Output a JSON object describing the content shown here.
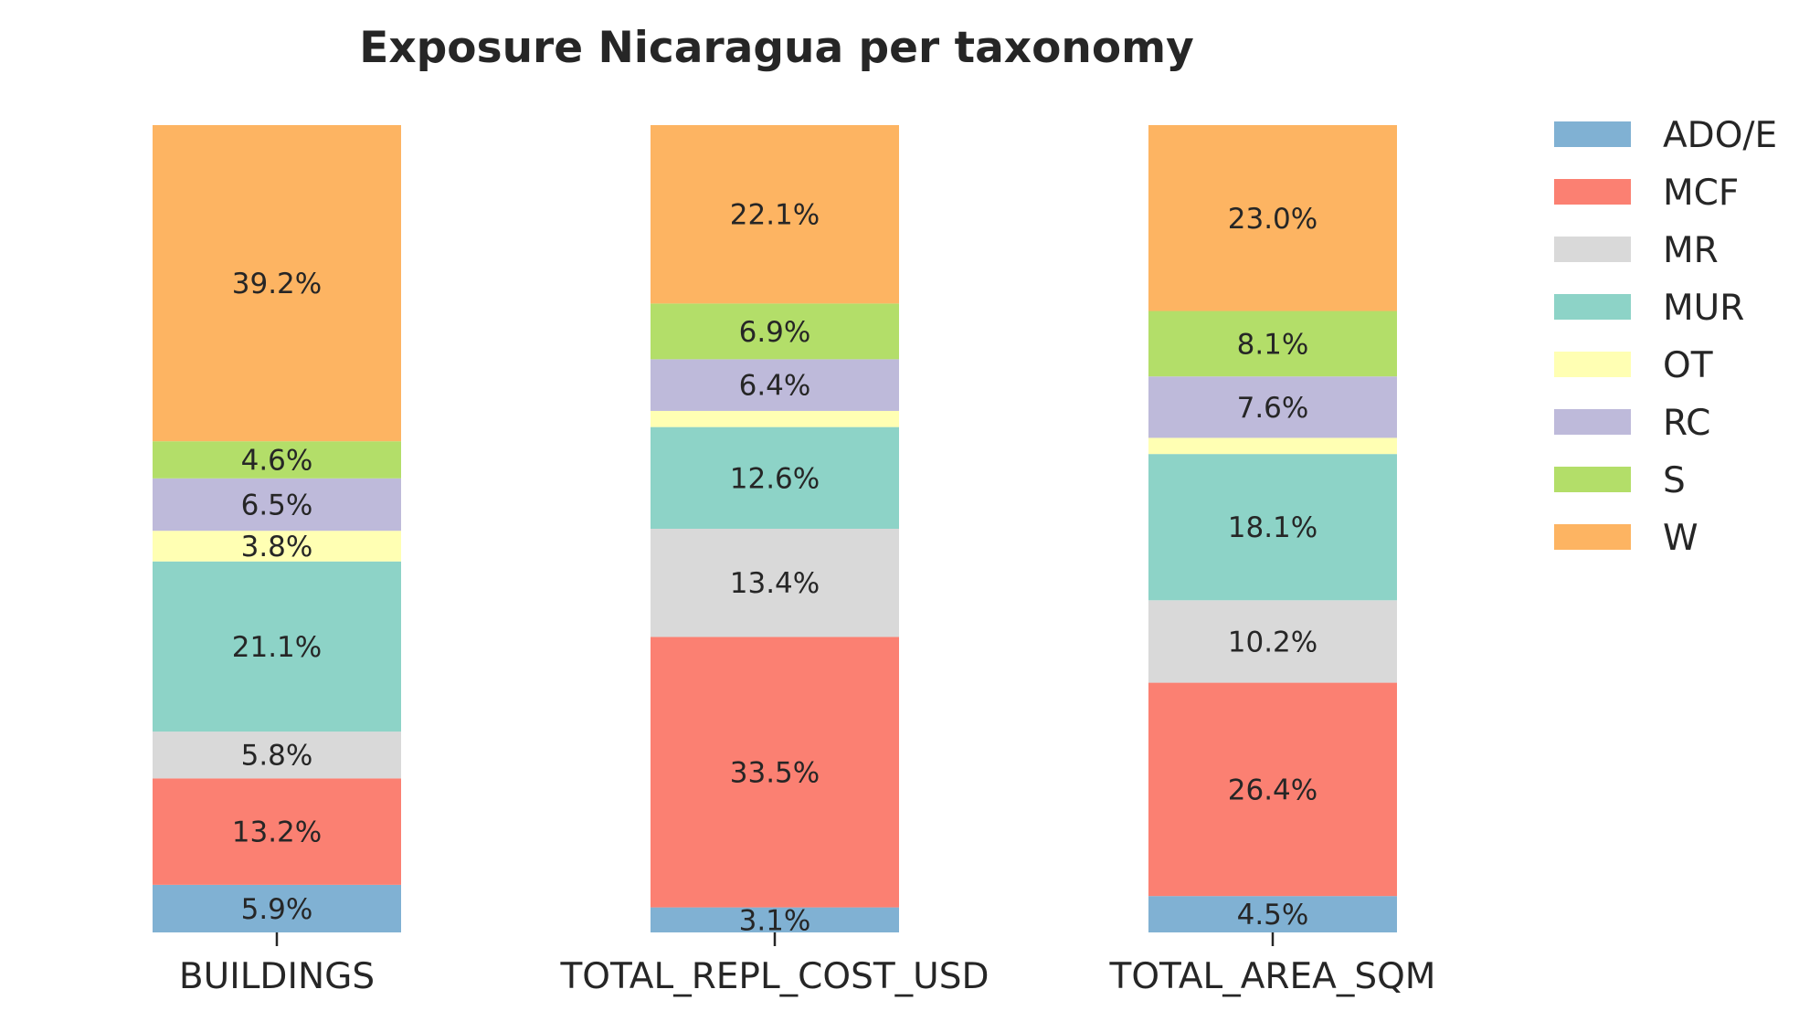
{
  "chart_data": {
    "type": "bar",
    "stacked": true,
    "normalized": true,
    "title": "Exposure Nicaragua per taxonomy",
    "xlabel": "",
    "ylabel": "",
    "ylim": [
      0,
      100
    ],
    "grid": false,
    "legend_position": "right",
    "categories": [
      "BUILDINGS",
      "TOTAL_REPL_COST_USD",
      "TOTAL_AREA_SQM"
    ],
    "series": [
      {
        "name": "ADO/E",
        "color": "#80b1d3",
        "values": [
          5.9,
          3.1,
          4.5
        ],
        "labels": [
          "5.9%",
          "3.1%",
          "4.5%"
        ]
      },
      {
        "name": "MCF",
        "color": "#fb8072",
        "values": [
          13.2,
          33.5,
          26.4
        ],
        "labels": [
          "13.2%",
          "33.5%",
          "26.4%"
        ]
      },
      {
        "name": "MR",
        "color": "#d9d9d9",
        "values": [
          5.8,
          13.4,
          10.2
        ],
        "labels": [
          "5.8%",
          "13.4%",
          "10.2%"
        ]
      },
      {
        "name": "MUR",
        "color": "#8dd3c7",
        "values": [
          21.1,
          12.6,
          18.1
        ],
        "labels": [
          "21.1%",
          "12.6%",
          "18.1%"
        ]
      },
      {
        "name": "OT",
        "color": "#ffffb3",
        "values": [
          3.8,
          2.0,
          2.0
        ],
        "labels": [
          "3.8%",
          "",
          ""
        ]
      },
      {
        "name": "RC",
        "color": "#bebada",
        "values": [
          6.5,
          6.4,
          7.6
        ],
        "labels": [
          "6.5%",
          "6.4%",
          "7.6%"
        ]
      },
      {
        "name": "S",
        "color": "#b3de69",
        "values": [
          4.6,
          6.9,
          8.1
        ],
        "labels": [
          "4.6%",
          "6.9%",
          "8.1%"
        ]
      },
      {
        "name": "W",
        "color": "#fdb462",
        "values": [
          39.2,
          22.1,
          23.0
        ],
        "labels": [
          "39.2%",
          "22.1%",
          "23.0%"
        ]
      }
    ]
  }
}
